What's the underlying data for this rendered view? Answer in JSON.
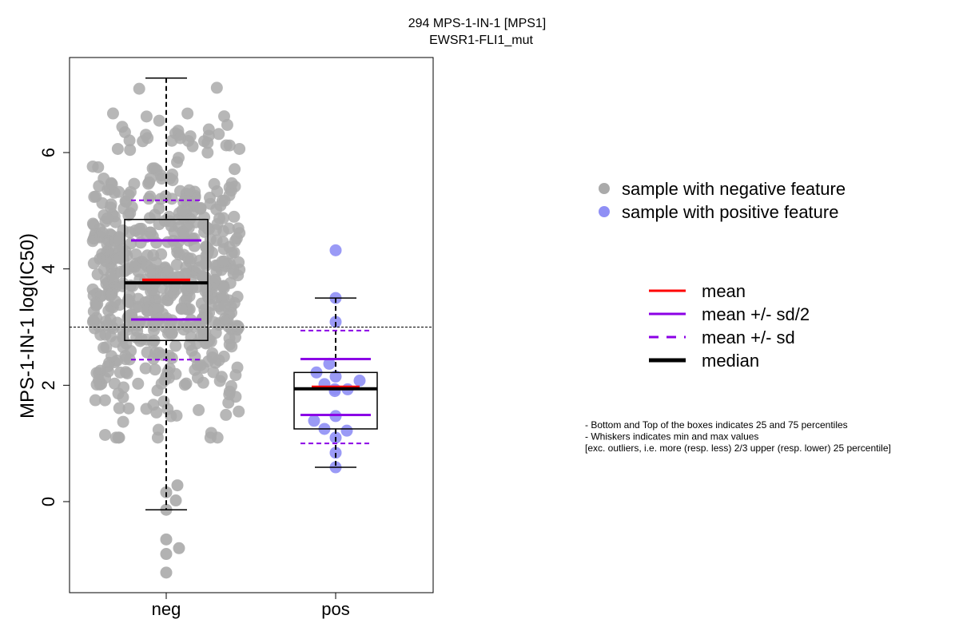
{
  "chart_data": {
    "type": "box",
    "title": "294 MPS-1-IN-1 [MPS1]",
    "subtitle": "EWSR1-FLI1_mut",
    "ylabel": "MPS-1-IN-1 log(IC50)",
    "ylim": [
      -1.5,
      7.7
    ],
    "yticks": [
      0,
      2,
      4,
      6
    ],
    "reference_line": 3.0,
    "categories": [
      "neg",
      "pos"
    ],
    "groups": [
      {
        "name": "neg",
        "color": "#aaaaaa",
        "whisker_low": -0.14,
        "q1": 2.77,
        "median": 3.76,
        "q3": 4.85,
        "whisker_high": 7.28,
        "mean": 3.81,
        "mean_minus_sd_half": 3.13,
        "mean_plus_sd_half": 4.49,
        "mean_minus_sd": 2.44,
        "mean_plus_sd": 5.18,
        "outliers": [
          -0.65,
          -0.8,
          -0.9,
          -1.22,
          0.28,
          0.02,
          0.16,
          -0.14
        ],
        "n_points": 620
      },
      {
        "name": "pos",
        "color": "#8f8ff5",
        "whisker_low": 0.59,
        "q1": 1.25,
        "median": 1.94,
        "q3": 2.22,
        "whisker_high": 3.5,
        "mean": 1.97,
        "mean_minus_sd_half": 1.49,
        "mean_plus_sd_half": 2.45,
        "mean_minus_sd": 1.0,
        "mean_plus_sd": 2.94,
        "points": [
          4.32,
          3.5,
          3.09,
          2.37,
          2.22,
          2.15,
          2.02,
          2.08,
          1.93,
          1.93,
          1.9,
          1.39,
          1.47,
          1.25,
          1.22,
          1.1,
          0.84,
          0.59
        ],
        "outliers": [
          4.32
        ]
      }
    ],
    "legend_points": [
      {
        "label": "sample with negative feature",
        "color": "#aaaaaa"
      },
      {
        "label": "sample with positive feature",
        "color": "#8f8ff5"
      }
    ],
    "legend_lines": [
      {
        "label": "mean",
        "color": "#ff0000",
        "style": "solid"
      },
      {
        "label": "mean +/- sd/2",
        "color": "#8b00e6",
        "style": "solid"
      },
      {
        "label": "mean +/- sd",
        "color": "#8b00e6",
        "style": "dashed"
      },
      {
        "label": "median",
        "color": "#000000",
        "style": "thick"
      }
    ],
    "notes": [
      "- Bottom and Top of the boxes indicates 25 and 75 percentiles",
      "- Whiskers indicates min and max values",
      "[exc. outliers, i.e. more (resp. less) 2/3 upper (resp. lower) 25 percentile]"
    ]
  }
}
